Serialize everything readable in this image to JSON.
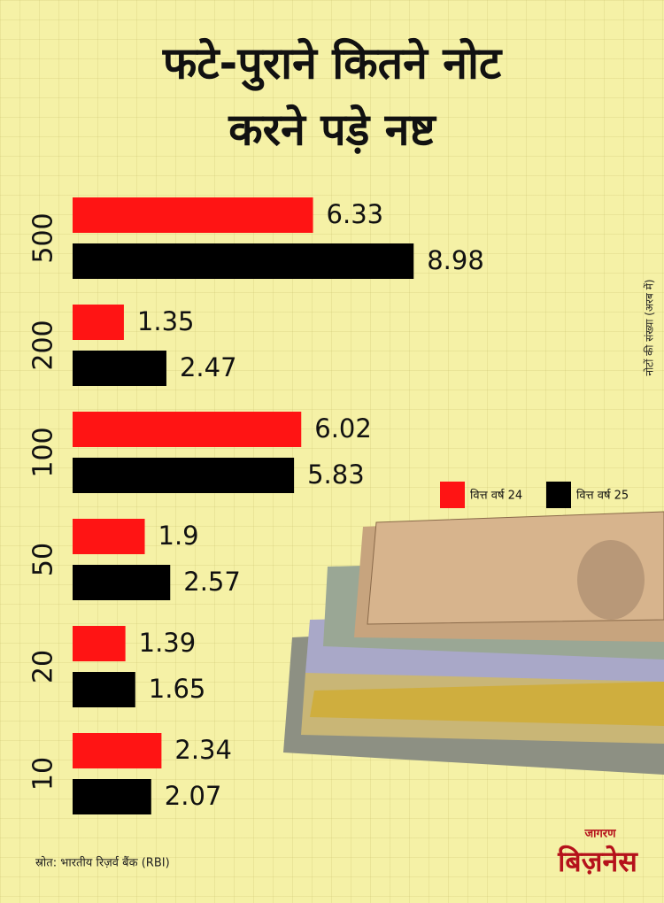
{
  "chart_data": {
    "type": "bar",
    "orientation": "horizontal",
    "title": [
      "फटे-पुराने कितने नोट",
      "करने पड़े नष्ट"
    ],
    "axis_label": "नोटों की संख्या (अरब में)",
    "source": "स्रोत: भारतीय रिज़र्व बैंक (RBI)",
    "categories": [
      "500",
      "200",
      "100",
      "50",
      "20",
      "10"
    ],
    "series": [
      {
        "name": "वित्त वर्ष 24",
        "color": "#ff1414",
        "values": [
          6.33,
          1.35,
          6.02,
          1.9,
          1.39,
          2.34
        ]
      },
      {
        "name": "वित्त वर्ष 25",
        "color": "#000000",
        "values": [
          8.98,
          2.47,
          5.83,
          2.57,
          1.65,
          2.07
        ]
      }
    ],
    "legend": "right"
  },
  "logo": {
    "top": "जागरण",
    "main": "बिज़नेस"
  }
}
